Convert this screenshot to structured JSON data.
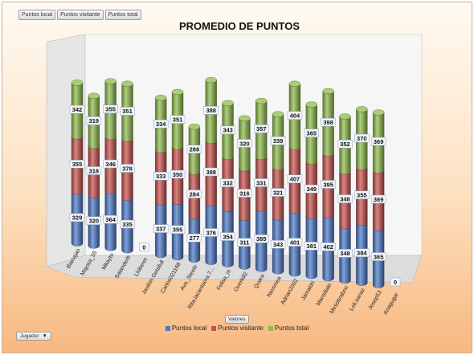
{
  "field_buttons": [
    "Puntos local",
    "Puntos visitante",
    "Puntos total"
  ],
  "values_button": "Valores",
  "axis_field_button": "Jugador",
  "dropdown_glyph": "▼",
  "chart_data": {
    "type": "bar",
    "stacked": true,
    "style": "3d-cylinder",
    "title": "PROMEDIO DE PUNTOS",
    "categories": [
      "Bianajao",
      "Majosa_55",
      "Mkayto",
      "Salanderb",
      "Lloberet",
      "Javilon Getafull",
      "Carlos021168",
      "Ava_Steele",
      "Rita.lacantaora.7...",
      "Felisa_m",
      "Overkill2",
      "Quara",
      "Nemmea",
      "Adrian2002",
      "Jamaldri",
      "Mansiliaki",
      "Mesobraboo",
      "Loli.sanaz",
      "Josep53",
      "Anagugar"
    ],
    "series": [
      {
        "name": "Puntos local",
        "color": "#4a78c8",
        "values": [
          329,
          320,
          364,
          335,
          0,
          337,
          355,
          277,
          376,
          354,
          311,
          385,
          343,
          401,
          381,
          402,
          348,
          384,
          365,
          0
        ]
      },
      {
        "name": "Puntos visitante",
        "color": "#c8504c",
        "values": [
          355,
          318,
          346,
          378,
          0,
          333,
          350,
          284,
          398,
          332,
          316,
          331,
          321,
          407,
          349,
          395,
          348,
          355,
          369,
          0
        ]
      },
      {
        "name": "Puntos total",
        "color": "#8dbb4a",
        "values": [
          342,
          319,
          355,
          351,
          0,
          334,
          351,
          288,
          388,
          343,
          320,
          357,
          339,
          404,
          365,
          398,
          352,
          370,
          369,
          0
        ]
      }
    ],
    "legend": {
      "position": "bottom"
    }
  }
}
